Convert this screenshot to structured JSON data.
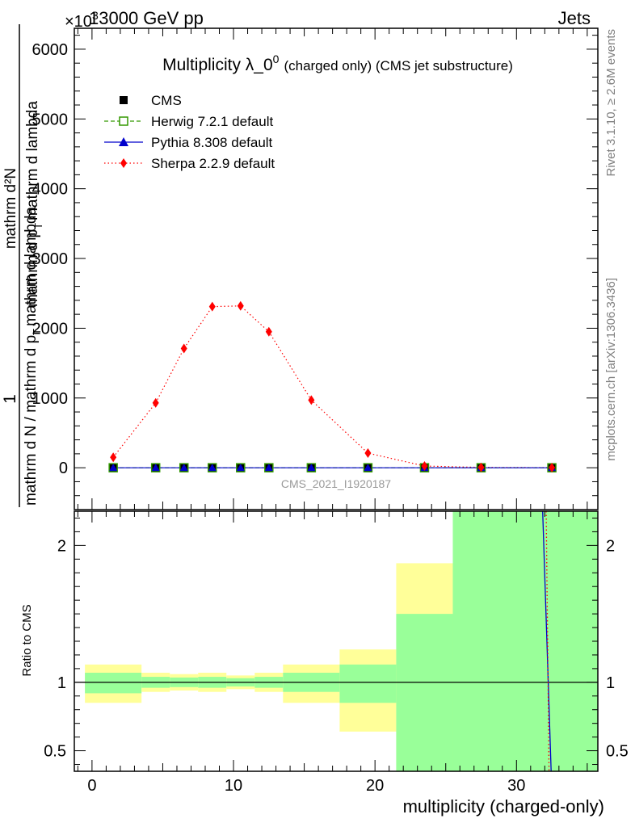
{
  "header": {
    "left": "13000 GeV pp",
    "right": "Jets",
    "exponent": "×10",
    "exponent_power": "3"
  },
  "side_labels": {
    "rivet": "Rivet 3.1.10, ≥ 2.6M events",
    "mcplots": "mcplots.cern.ch [arXiv:1306.3436]"
  },
  "watermark": "CMS_2021_I1920187",
  "colors": {
    "cms": "#000000",
    "herwig": "#339900",
    "pythia": "#0000cc",
    "sherpa": "#ff0000",
    "band_inner": "#99ff99",
    "band_outer": "#ffff99"
  },
  "chart_data": [
    {
      "type": "line",
      "title_main": "Multiplicity λ_0",
      "title_sup": "0",
      "title_suffix": "(charged only) (CMS jet substructure)",
      "ylabel_top": "1",
      "ylabel_bottom": "mathrm d N / mathrm d p",
      "ylabel_bottom_sub": "T",
      "ylabel_bottom_suffix": "mathrm d lambda",
      "ylabel_num_overlay": "mathrm d²N",
      "ylabel_den_overlay": "mathrm d p",
      "ylabel_den_overlay_sub": "T",
      "ylabel_den_overlay_suffix": "mathrm d lambda",
      "xlim": [
        -1.25,
        35.75
      ],
      "ylim": [
        -600,
        6300
      ],
      "yticks": [
        0,
        1000,
        2000,
        3000,
        4000,
        5000,
        6000
      ],
      "ytick_labels": [
        "0",
        "1000",
        "2000",
        "3000",
        "4000",
        "5000",
        "6000"
      ],
      "legend_position": "top-left",
      "series": [
        {
          "name": "CMS",
          "style": "points-square-filled",
          "x": [
            1.5,
            4.5,
            6.5,
            8.5,
            10.5,
            12.5,
            15.5,
            19.5,
            23.5,
            27.5,
            32.5
          ],
          "y": [
            0,
            0,
            0,
            0,
            0,
            0,
            0,
            0,
            0,
            0,
            0
          ]
        },
        {
          "name": "Herwig 7.2.1 default",
          "style": "dashed-square-open",
          "x": [
            1.5,
            4.5,
            6.5,
            8.5,
            10.5,
            12.5,
            15.5,
            19.5,
            23.5,
            27.5,
            32.5
          ],
          "y": [
            0,
            0,
            0,
            0,
            0,
            0,
            0,
            0,
            0,
            0,
            0
          ]
        },
        {
          "name": "Pythia 8.308 default",
          "style": "solid-triangle",
          "x": [
            1.5,
            4.5,
            6.5,
            8.5,
            10.5,
            12.5,
            15.5,
            19.5,
            23.5,
            27.5,
            32.5
          ],
          "y": [
            0,
            0,
            0,
            0,
            0,
            0,
            0,
            0,
            0,
            0,
            0
          ]
        },
        {
          "name": "Sherpa 2.2.9 default",
          "style": "dotted-diamond",
          "x": [
            1.5,
            4.5,
            6.5,
            8.5,
            10.5,
            12.5,
            15.5,
            19.5,
            23.5,
            27.5,
            32.5
          ],
          "y": [
            150,
            930,
            1710,
            2310,
            2320,
            1950,
            970,
            210,
            25,
            5,
            2
          ]
        }
      ]
    },
    {
      "type": "area",
      "ylabel": "Ratio to CMS",
      "xlabel": "multiplicity (charged-only)",
      "xlim": [
        -1.25,
        35.75
      ],
      "ylim": [
        0.35,
        2.25
      ],
      "yticks": [
        0.5,
        1,
        2
      ],
      "ytick_labels": [
        "0.5",
        "1",
        "2"
      ],
      "xticks": [
        0,
        10,
        20,
        30
      ],
      "xtick_labels": [
        "0",
        "10",
        "20",
        "30"
      ],
      "bins": [
        {
          "lo": -0.5,
          "hi": 3.5,
          "inner": [
            0.92,
            1.07
          ],
          "outer": [
            0.85,
            1.13
          ]
        },
        {
          "lo": 3.5,
          "hi": 5.5,
          "inner": [
            0.96,
            1.04
          ],
          "outer": [
            0.93,
            1.07
          ]
        },
        {
          "lo": 5.5,
          "hi": 7.5,
          "inner": [
            0.965,
            1.035
          ],
          "outer": [
            0.94,
            1.06
          ]
        },
        {
          "lo": 7.5,
          "hi": 9.5,
          "inner": [
            0.96,
            1.04
          ],
          "outer": [
            0.93,
            1.07
          ]
        },
        {
          "lo": 9.5,
          "hi": 11.5,
          "inner": [
            0.97,
            1.03
          ],
          "outer": [
            0.95,
            1.05
          ]
        },
        {
          "lo": 11.5,
          "hi": 13.5,
          "inner": [
            0.96,
            1.04
          ],
          "outer": [
            0.93,
            1.07
          ]
        },
        {
          "lo": 13.5,
          "hi": 17.5,
          "inner": [
            0.93,
            1.07
          ],
          "outer": [
            0.85,
            1.13
          ]
        },
        {
          "lo": 17.5,
          "hi": 21.5,
          "inner": [
            0.85,
            1.13
          ],
          "outer": [
            0.64,
            1.24
          ]
        },
        {
          "lo": 21.5,
          "hi": 25.5,
          "inner": [
            0.35,
            1.5
          ],
          "outer": [
            0.35,
            1.87
          ]
        },
        {
          "lo": 25.5,
          "hi": 35.75,
          "inner": [
            0.35,
            2.25
          ],
          "outer": [
            0.35,
            2.25
          ]
        }
      ],
      "reference_line": 1,
      "ratio_lines": [
        {
          "name": "Pythia 8.308 default",
          "x": [
            31.85,
            32.45
          ],
          "y": [
            2.25,
            0.35
          ]
        },
        {
          "name": "Sherpa 2.2.9 default",
          "x": [
            32.1,
            32.3
          ],
          "y": [
            2.25,
            0.35
          ]
        }
      ]
    }
  ]
}
